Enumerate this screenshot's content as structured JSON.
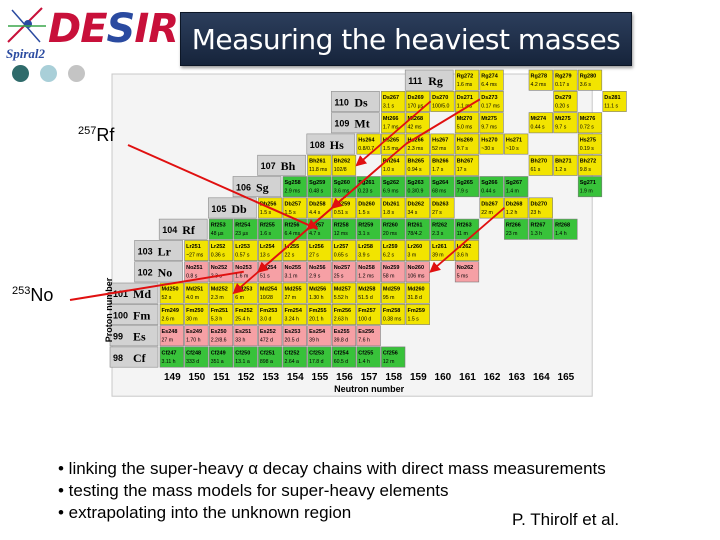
{
  "logo": {
    "name": "DESIR",
    "sub": "Spiral2",
    "dots": [
      "#2f6b6b",
      "#a9cfd8",
      "#c4c4c4"
    ]
  },
  "title": "Measuring the heaviest masses",
  "labels": {
    "rf": {
      "mass": "257",
      "symbol": "Rf"
    },
    "no": {
      "mass": "253",
      "symbol": "No"
    }
  },
  "chart": {
    "colors": {
      "green": "#38c23a",
      "yellow": "#f2e400",
      "pink": "#f6a0a5",
      "stable_gray": "#d2d2d2"
    },
    "row_labels": [
      "111",
      "110",
      "109",
      "108",
      "107",
      "106",
      "105",
      "104",
      "103",
      "102",
      "101",
      "100",
      "99",
      "98"
    ],
    "elements": [
      "Rg",
      "Ds",
      "Mt",
      "Hs",
      "Bh",
      "Sg",
      "Db",
      "Rf",
      "Lr",
      "No",
      "Md",
      "Fm",
      "Es",
      "Cf"
    ],
    "neutron_numbers": [
      "149",
      "150",
      "151",
      "152",
      "153",
      "154",
      "155",
      "156",
      "157",
      "158",
      "159",
      "160",
      "161",
      "162",
      "163",
      "164",
      "165"
    ],
    "x_axis_label": "Neutron number",
    "y_axis_label": "Proton number",
    "cells": [
      {
        "row": 0,
        "cols": [
          [
            12,
            "yellow",
            "Rg272",
            "1.6 ms"
          ],
          [
            13,
            "yellow",
            "Rg274",
            "6.4 ms"
          ],
          [
            15,
            "yellow",
            "Rg278",
            "4.2 ms"
          ],
          [
            16,
            "yellow",
            "Rg279",
            "0.17 s"
          ],
          [
            17,
            "yellow",
            "Rg280",
            "3.6 s"
          ]
        ]
      },
      {
        "row": 1,
        "cols": [
          [
            9,
            "yellow",
            "Ds267",
            "3.1 s"
          ],
          [
            10,
            "yellow",
            "Ds269",
            "170 µs"
          ],
          [
            11,
            "yellow",
            "Ds270",
            "100/5.0"
          ],
          [
            12,
            "yellow",
            "Ds271",
            "1.1 ms"
          ],
          [
            13,
            "yellow",
            "Ds273",
            "0.17 ms"
          ],
          [
            16,
            "yellow",
            "Ds279",
            "0.20 s"
          ],
          [
            18,
            "yellow",
            "Ds281",
            "11.1 s"
          ]
        ]
      },
      {
        "row": 2,
        "cols": [
          [
            9,
            "yellow",
            "Mt266",
            "1.7 ms"
          ],
          [
            10,
            "yellow",
            "Mt268",
            "42 ms"
          ],
          [
            12,
            "yellow",
            "Mt270",
            "5.0 ms"
          ],
          [
            13,
            "yellow",
            "Mt275",
            "9.7 ms"
          ],
          [
            15,
            "yellow",
            "Mt274",
            "0.44 s"
          ],
          [
            16,
            "yellow",
            "Mt275",
            "9.7 s"
          ],
          [
            17,
            "yellow",
            "Mt276",
            "0.72 s"
          ]
        ]
      },
      {
        "row": 3,
        "cols": [
          [
            8,
            "yellow",
            "Hs264",
            "0.8/0.7"
          ],
          [
            9,
            "yellow",
            "Hs265",
            "1.5 ms"
          ],
          [
            10,
            "yellow",
            "Hs266",
            "2.3 ms"
          ],
          [
            11,
            "yellow",
            "Hs267",
            "52 ms"
          ],
          [
            12,
            "yellow",
            "Hs269",
            "9.7 s"
          ],
          [
            13,
            "yellow",
            "Hs270",
            "~30 s"
          ],
          [
            14,
            "yellow",
            "Hs271",
            "~10 s"
          ],
          [
            17,
            "yellow",
            "Hs275",
            "0.19 s"
          ]
        ]
      },
      {
        "row": 4,
        "cols": [
          [
            6,
            "yellow",
            "Bh261",
            "11.8 ms"
          ],
          [
            7,
            "yellow",
            "Bh262",
            "102/8"
          ],
          [
            9,
            "yellow",
            "Bh264",
            "1.0 s"
          ],
          [
            10,
            "yellow",
            "Bh265",
            "0.94 s"
          ],
          [
            11,
            "yellow",
            "Bh266",
            "1.7 s"
          ],
          [
            12,
            "yellow",
            "Bh267",
            "17 s"
          ],
          [
            15,
            "yellow",
            "Bh270",
            "61 s"
          ],
          [
            16,
            "yellow",
            "Bh271",
            "1.2 s"
          ],
          [
            17,
            "yellow",
            "Bh272",
            "9.8 s"
          ]
        ]
      },
      {
        "row": 5,
        "cols": [
          [
            5,
            "green",
            "Sg258",
            "2.9 ms"
          ],
          [
            6,
            "green",
            "Sg259",
            "0.48 s"
          ],
          [
            7,
            "green",
            "Sg260",
            "3.6 ms"
          ],
          [
            8,
            "green",
            "Sg261",
            "0.23 s"
          ],
          [
            9,
            "green",
            "Sg262",
            "6.9 ms"
          ],
          [
            10,
            "green",
            "Sg263",
            "0.3/0.9"
          ],
          [
            11,
            "green",
            "Sg264",
            "68 ms"
          ],
          [
            12,
            "green",
            "Sg265",
            "7.9 s"
          ],
          [
            13,
            "green",
            "Sg266",
            "0.44 s"
          ],
          [
            14,
            "green",
            "Sg267",
            "1.4 m"
          ],
          [
            17,
            "green",
            "Sg271",
            "1.9 m"
          ]
        ]
      },
      {
        "row": 6,
        "cols": [
          [
            4,
            "yellow",
            "Db256",
            "1.5 s"
          ],
          [
            5,
            "yellow",
            "Db257",
            "1.5 s"
          ],
          [
            6,
            "yellow",
            "Db258",
            "4.4 s"
          ],
          [
            7,
            "yellow",
            "Db259",
            "0.51 s"
          ],
          [
            8,
            "yellow",
            "Db260",
            "1.5 s"
          ],
          [
            9,
            "yellow",
            "Db261",
            "1.8 s"
          ],
          [
            10,
            "yellow",
            "Db262",
            "34 s"
          ],
          [
            11,
            "yellow",
            "Db263",
            "27 s"
          ],
          [
            13,
            "yellow",
            "Db267",
            "22 m"
          ],
          [
            14,
            "yellow",
            "Db268",
            "1.2 h"
          ],
          [
            15,
            "yellow",
            "Db270",
            "23 h"
          ]
        ]
      },
      {
        "row": 7,
        "cols": [
          [
            2,
            "green",
            "Rf253",
            "48 µs"
          ],
          [
            3,
            "green",
            "Rf254",
            "23 µs"
          ],
          [
            4,
            "green",
            "Rf255",
            "1.6 s"
          ],
          [
            5,
            "green",
            "Rf256",
            "6.4 ms"
          ],
          [
            6,
            "green",
            "Rf257",
            "4.7 s"
          ],
          [
            7,
            "green",
            "Rf258",
            "12 ms"
          ],
          [
            8,
            "green",
            "Rf259",
            "3.1 s"
          ],
          [
            9,
            "green",
            "Rf260",
            "20 ms"
          ],
          [
            10,
            "green",
            "Rf261",
            "78/4.2"
          ],
          [
            11,
            "green",
            "Rf262",
            "2.3 s"
          ],
          [
            12,
            "green",
            "Rf263",
            "11 m"
          ],
          [
            14,
            "green",
            "Rf266",
            "23 m"
          ],
          [
            15,
            "green",
            "Rf267",
            "1.3 h"
          ],
          [
            16,
            "green",
            "Rf268",
            "1.4 h"
          ]
        ]
      },
      {
        "row": 8,
        "cols": [
          [
            1,
            "yellow",
            "Lr251",
            "~27 ms"
          ],
          [
            2,
            "yellow",
            "Lr252",
            "0.36 s"
          ],
          [
            3,
            "yellow",
            "Lr253",
            "0.57 s"
          ],
          [
            4,
            "yellow",
            "Lr254",
            "13 s"
          ],
          [
            5,
            "yellow",
            "Lr255",
            "22 s"
          ],
          [
            6,
            "yellow",
            "Lr256",
            "27 s"
          ],
          [
            7,
            "yellow",
            "Lr257",
            "0.65 s"
          ],
          [
            8,
            "yellow",
            "Lr258",
            "3.9 s"
          ],
          [
            9,
            "yellow",
            "Lr259",
            "6.2 s"
          ],
          [
            10,
            "yellow",
            "Lr260",
            "3 m"
          ],
          [
            11,
            "yellow",
            "Lr261",
            "39 m"
          ],
          [
            12,
            "yellow",
            "Lr262",
            "3.6 h"
          ]
        ]
      },
      {
        "row": 9,
        "cols": [
          [
            1,
            "pink",
            "No251",
            "0.8 s"
          ],
          [
            2,
            "pink",
            "No252",
            "2.3 s"
          ],
          [
            3,
            "pink",
            "No253",
            "1.6 m"
          ],
          [
            4,
            "pink",
            "No254",
            "51 s"
          ],
          [
            5,
            "pink",
            "No255",
            "3.1 m"
          ],
          [
            6,
            "pink",
            "No256",
            "2.9 s"
          ],
          [
            7,
            "pink",
            "No257",
            "25 s"
          ],
          [
            8,
            "pink",
            "No258",
            "1.2 ms"
          ],
          [
            9,
            "pink",
            "No259",
            "58 m"
          ],
          [
            10,
            "pink",
            "No260",
            "106 ms"
          ],
          [
            12,
            "pink",
            "No262",
            "5 ms"
          ]
        ]
      },
      {
        "row": 10,
        "cols": [
          [
            0,
            "yellow",
            "Md250",
            "52 s"
          ],
          [
            1,
            "yellow",
            "Md251",
            "4.0 m"
          ],
          [
            2,
            "yellow",
            "Md252",
            "2.3 m"
          ],
          [
            3,
            "yellow",
            "Md253",
            "6 m"
          ],
          [
            4,
            "yellow",
            "Md254",
            "10/28"
          ],
          [
            5,
            "yellow",
            "Md255",
            "27 m"
          ],
          [
            6,
            "yellow",
            "Md256",
            "1.30 h"
          ],
          [
            7,
            "yellow",
            "Md257",
            "5.52 h"
          ],
          [
            8,
            "yellow",
            "Md258",
            "51.5 d"
          ],
          [
            9,
            "yellow",
            "Md259",
            "95 m"
          ],
          [
            10,
            "yellow",
            "Md260",
            "31.8 d"
          ]
        ]
      },
      {
        "row": 11,
        "cols": [
          [
            0,
            "yellow",
            "Fm249",
            "2.6 m"
          ],
          [
            1,
            "yellow",
            "Fm250",
            "30 m"
          ],
          [
            2,
            "yellow",
            "Fm251",
            "5.3 h"
          ],
          [
            3,
            "yellow",
            "Fm252",
            "25.4 h"
          ],
          [
            4,
            "yellow",
            "Fm253",
            "3.0 d"
          ],
          [
            5,
            "yellow",
            "Fm254",
            "3.24 h"
          ],
          [
            6,
            "yellow",
            "Fm255",
            "20.1 h"
          ],
          [
            7,
            "yellow",
            "Fm256",
            "2.63 h"
          ],
          [
            8,
            "yellow",
            "Fm257",
            "100 d"
          ],
          [
            9,
            "yellow",
            "Fm258",
            "0.38 ms"
          ],
          [
            10,
            "yellow",
            "Fm259",
            "1.5 s"
          ]
        ]
      },
      {
        "row": 12,
        "cols": [
          [
            0,
            "pink",
            "Es248",
            "27 m"
          ],
          [
            1,
            "pink",
            "Es249",
            "1.70 h"
          ],
          [
            2,
            "pink",
            "Es250",
            "2.2/8.6"
          ],
          [
            3,
            "pink",
            "Es251",
            "33 h"
          ],
          [
            4,
            "pink",
            "Es252",
            "472 d"
          ],
          [
            5,
            "pink",
            "Es253",
            "20.5 d"
          ],
          [
            6,
            "pink",
            "Es254",
            "39 h"
          ],
          [
            7,
            "pink",
            "Es255",
            "39.8 d"
          ],
          [
            8,
            "pink",
            "Es256",
            "7.6 h"
          ]
        ]
      },
      {
        "row": 13,
        "cols": [
          [
            0,
            "green",
            "Cf247",
            "3.11 h"
          ],
          [
            1,
            "green",
            "Cf248",
            "333 d"
          ],
          [
            2,
            "green",
            "Cf249",
            "351 a"
          ],
          [
            3,
            "green",
            "Cf250",
            "13.1 a"
          ],
          [
            4,
            "green",
            "Cf251",
            "898 a"
          ],
          [
            5,
            "green",
            "Cf252",
            "2.64 a"
          ],
          [
            6,
            "green",
            "Cf253",
            "17.8 d"
          ],
          [
            7,
            "green",
            "Cf254",
            "60.5 d"
          ],
          [
            8,
            "green",
            "Cf255",
            "1.4 h"
          ],
          [
            9,
            "green",
            "Cf256",
            "12 m"
          ]
        ]
      }
    ]
  },
  "bullets": [
    "• linking the super-heavy α decay chains with direct mass measurements",
    "• testing the mass models for super-heavy elements",
    "• extrapolating into the unknown region"
  ],
  "credit": "P. Thirolf et al."
}
